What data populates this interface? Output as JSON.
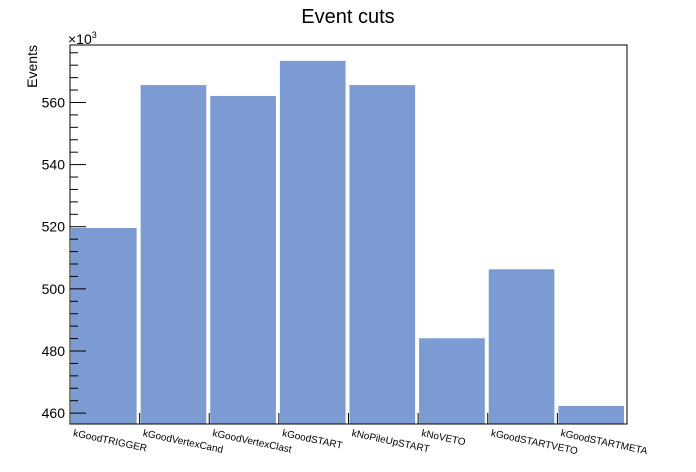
{
  "chart_data": {
    "type": "bar",
    "title": "Event cuts",
    "ylabel": "Events",
    "xlabel": "",
    "y_multiplier_label": "×10",
    "y_multiplier_exponent": "3",
    "categories": [
      "kGoodTRIGGER",
      "kGoodVertexCand",
      "kGoodVertexClast",
      "kGoodSTART",
      "kNoPileUpSTART",
      "kNoVETO",
      "kGoodSTARTVETO",
      "kGoodSTARTMETA"
    ],
    "values": [
      519.6,
      565.6,
      562.1,
      573.4,
      565.6,
      484.1,
      506.3,
      462.3
    ],
    "ylim": [
      456.5,
      578.5
    ],
    "yticks": [
      460,
      480,
      500,
      520,
      540,
      560
    ],
    "ytick_labels": [
      "460",
      "480",
      "500",
      "520",
      "540",
      "560"
    ],
    "bar_color": "#7b9bd2",
    "grid": false,
    "legend": "none"
  }
}
